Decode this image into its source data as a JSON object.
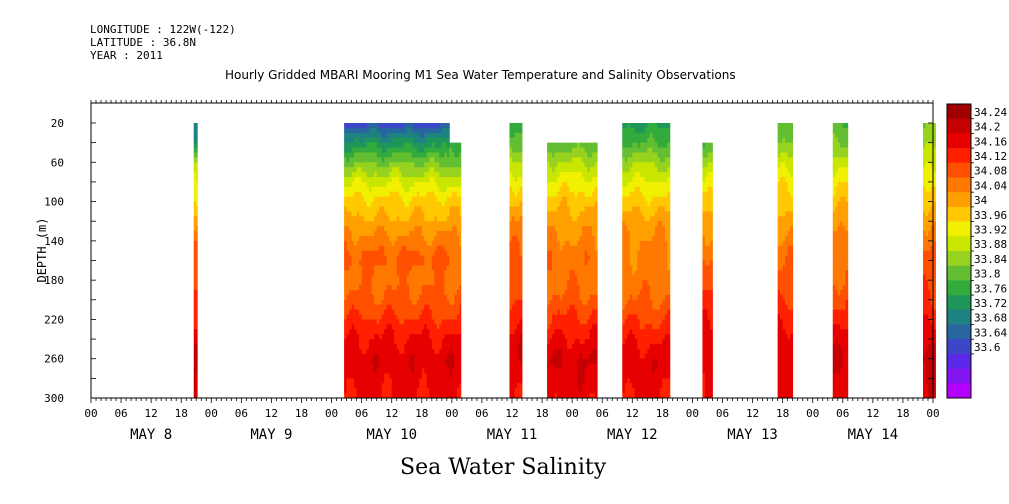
{
  "header": {
    "longitude": "LONGITUDE : 122W(-122)",
    "latitude": "LATITUDE : 36.8N",
    "year": "YEAR : 2011"
  },
  "title": "Hourly Gridded MBARI Mooring M1 Sea Water Temperature and Salinity Observations",
  "xlabel": "Sea Water Salinity",
  "ylabel": "DEPTH (m)",
  "chart_data": {
    "type": "heatmap",
    "title": "Hourly Gridded MBARI Mooring M1 Sea Water Temperature and Salinity Observations",
    "xlabel": "Sea Water Salinity",
    "ylabel": "DEPTH (m)",
    "x_range_hours": [
      0,
      168
    ],
    "y_range": [
      300,
      20
    ],
    "y_ticks": [
      20,
      60,
      100,
      140,
      180,
      220,
      260,
      300
    ],
    "hour_tick_labels": [
      "00",
      "06",
      "12",
      "18",
      "00",
      "06",
      "12",
      "18",
      "00",
      "06",
      "12",
      "18",
      "00",
      "06",
      "12",
      "18",
      "00",
      "06",
      "12",
      "18",
      "00",
      "06",
      "12",
      "18",
      "00",
      "06",
      "12",
      "18",
      "00"
    ],
    "day_labels": [
      "MAY  8",
      "MAY  9",
      "MAY 10",
      "MAY 11",
      "MAY 12",
      "MAY 13",
      "MAY 14"
    ],
    "colorbar": {
      "labels": [
        "34.24",
        "34.2",
        "34.16",
        "34.12",
        "34.08",
        "34.04",
        "34",
        "33.96",
        "33.92",
        "33.88",
        "33.84",
        "33.8",
        "33.76",
        "33.72",
        "33.68",
        "33.64",
        "33.6"
      ],
      "colors": [
        "#a00000",
        "#c40000",
        "#e60000",
        "#ff2000",
        "#ff5000",
        "#ff7800",
        "#ffa000",
        "#ffc800",
        "#f0f000",
        "#c8e600",
        "#96d21e",
        "#64be32",
        "#32aa3c",
        "#1e965a",
        "#1e8282",
        "#2864a0",
        "#3c46c8",
        "#5a28e6",
        "#8214f0",
        "#b400ff"
      ]
    },
    "profile_depths": [
      20,
      40,
      60,
      80,
      100,
      120,
      140,
      160,
      180,
      200,
      220,
      240,
      260,
      280,
      300
    ],
    "segments": [
      {
        "start": 20.5,
        "end": 21.2,
        "top": 20,
        "profile": [
          33.77,
          33.8,
          33.95,
          33.99,
          34.01,
          34.05,
          34.1,
          34.12,
          34.13,
          34.16,
          34.18,
          34.22,
          34.24,
          34.2,
          34.2
        ]
      },
      {
        "start": 50.5,
        "end": 71.5,
        "top": 20,
        "profile": [
          33.72,
          33.82,
          33.9,
          33.97,
          34.02,
          34.05,
          34.09,
          34.12,
          34.1,
          34.12,
          34.15,
          34.18,
          34.2,
          34.19,
          34.18
        ]
      },
      {
        "start": 71.5,
        "end": 73.8,
        "top": 40,
        "profile": [
          33.85,
          33.86,
          33.9,
          33.96,
          34.02,
          34.05,
          34.08,
          34.11,
          34.1,
          34.12,
          34.14,
          34.18,
          34.21,
          34.2,
          34.19
        ]
      },
      {
        "start": 83.5,
        "end": 86.0,
        "top": 20,
        "profile": [
          33.84,
          33.88,
          33.95,
          34.0,
          34.04,
          34.08,
          34.1,
          34.12,
          34.13,
          34.15,
          34.17,
          34.2,
          34.2,
          34.18,
          34.18
        ]
      },
      {
        "start": 91.0,
        "end": 101.0,
        "top": 40,
        "profile": [
          33.84,
          33.88,
          33.94,
          33.99,
          34.03,
          34.06,
          34.08,
          34.1,
          34.1,
          34.12,
          34.15,
          34.18,
          34.21,
          34.2,
          34.19
        ]
      },
      {
        "start": 106.0,
        "end": 115.5,
        "top": 20,
        "profile": [
          33.83,
          33.87,
          33.93,
          33.98,
          34.02,
          34.06,
          34.08,
          34.09,
          34.09,
          34.11,
          34.14,
          34.17,
          34.2,
          34.19,
          34.18
        ]
      },
      {
        "start": 122.0,
        "end": 124.0,
        "top": 40,
        "profile": [
          33.84,
          33.87,
          33.92,
          33.98,
          34.02,
          34.06,
          34.09,
          34.12,
          34.13,
          34.15,
          34.17,
          34.2,
          34.2,
          34.19,
          34.19
        ]
      },
      {
        "start": 137.0,
        "end": 140.0,
        "top": 20,
        "profile": [
          33.88,
          33.9,
          33.95,
          34.0,
          34.03,
          34.06,
          34.09,
          34.11,
          34.12,
          34.14,
          34.17,
          34.2,
          34.21,
          34.2,
          34.19
        ]
      },
      {
        "start": 148.0,
        "end": 151.0,
        "top": 20,
        "profile": [
          33.88,
          33.91,
          33.96,
          34.0,
          34.03,
          34.06,
          34.09,
          34.11,
          34.11,
          34.13,
          34.16,
          34.19,
          34.22,
          34.2,
          34.19
        ]
      },
      {
        "start": 166.0,
        "end": 168.5,
        "top": 20,
        "profile": [
          33.9,
          33.92,
          33.96,
          34.0,
          34.04,
          34.07,
          34.1,
          34.12,
          34.13,
          34.15,
          34.18,
          34.21,
          34.23,
          34.21,
          34.2
        ]
      }
    ]
  }
}
